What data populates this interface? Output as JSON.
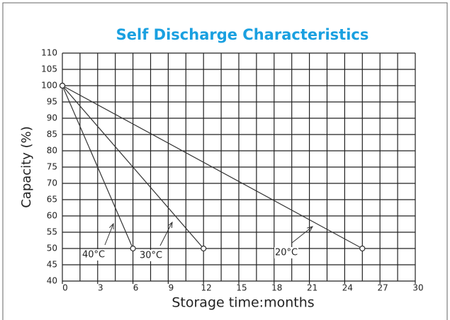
{
  "chart_data": {
    "type": "line",
    "title": "Self Discharge Characteristics",
    "xlabel": "Storage time:months",
    "ylabel": "Capacity (%)",
    "xlim": [
      0,
      30
    ],
    "xticks": [
      0,
      3,
      6,
      9,
      12,
      15,
      18,
      21,
      24,
      27,
      30
    ],
    "xgrid": [
      1.5,
      4.5,
      7.5,
      10.5,
      13.5,
      16.5,
      19.5,
      22.5,
      25.5,
      28.5
    ],
    "ylim": [
      40,
      110
    ],
    "yticks": [
      40,
      45,
      50,
      55,
      60,
      65,
      70,
      75,
      80,
      85,
      90,
      95,
      100,
      105,
      110
    ],
    "grid": true,
    "series": [
      {
        "name": "40°C",
        "color": "#333333",
        "x": [
          0,
          6
        ],
        "values": [
          100,
          50
        ]
      },
      {
        "name": "30°C",
        "color": "#333333",
        "x": [
          0,
          12
        ],
        "values": [
          100,
          50
        ]
      },
      {
        "name": "20°C",
        "color": "#333333",
        "x": [
          0,
          25.5
        ],
        "values": [
          100,
          50
        ]
      }
    ]
  }
}
